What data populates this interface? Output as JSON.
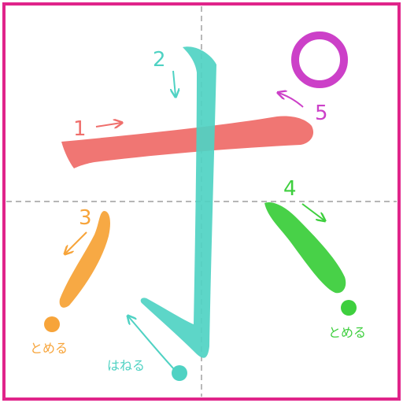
{
  "colors": {
    "frame": "#e0248a",
    "guide": "#8a8a8a",
    "stroke1": "#ef6f6c",
    "stroke2": "#4fd2c3",
    "stroke3": "#f7a43a",
    "stroke4": "#3ecf3e",
    "stroke5": "#cc40c8"
  },
  "strokes": [
    {
      "number": "1",
      "color_key": "stroke1"
    },
    {
      "number": "2",
      "color_key": "stroke2",
      "ending": "はねる"
    },
    {
      "number": "3",
      "color_key": "stroke3",
      "ending": "とめる"
    },
    {
      "number": "4",
      "color_key": "stroke4",
      "ending": "とめる"
    },
    {
      "number": "5",
      "color_key": "stroke5"
    }
  ]
}
